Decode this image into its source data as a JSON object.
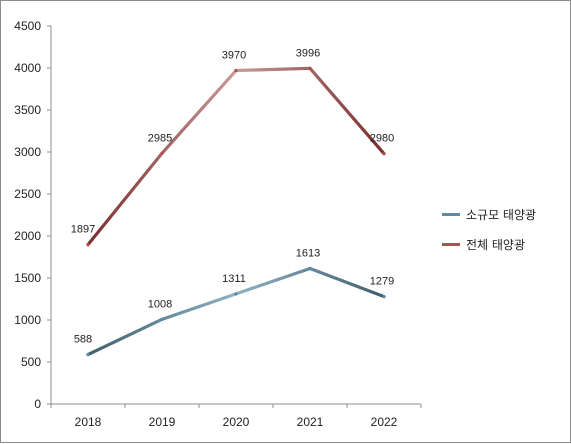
{
  "chart_data": {
    "type": "line",
    "categories": [
      "2018",
      "2019",
      "2020",
      "2021",
      "2022"
    ],
    "ylim": [
      0,
      4500
    ],
    "yticks": [
      0,
      500,
      1000,
      1500,
      2000,
      2500,
      3000,
      3500,
      4000,
      4500
    ],
    "series": [
      {
        "name": "소규모 태양광",
        "values": [
          588,
          1008,
          1311,
          1613,
          1279
        ],
        "color": "#5b8aa6"
      },
      {
        "name": "전체 태양광",
        "values": [
          1897,
          2985,
          3970,
          3996,
          2980
        ],
        "color": "#b05050"
      }
    ],
    "grid": false,
    "legend": "right",
    "title": "",
    "xlabel": "",
    "ylabel": ""
  }
}
